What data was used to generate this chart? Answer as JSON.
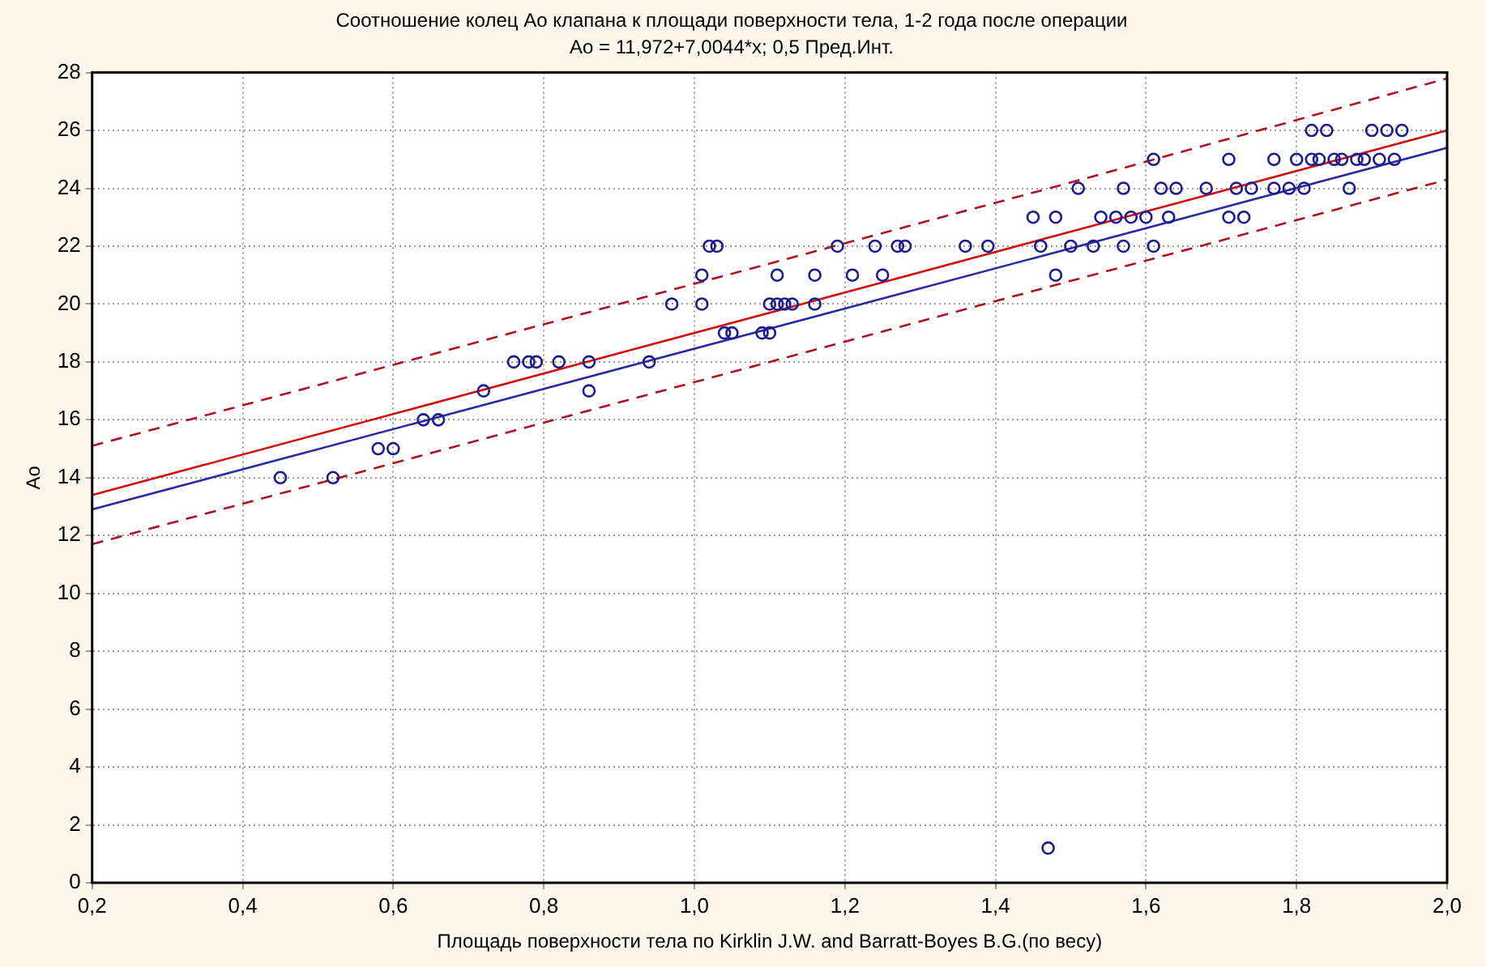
{
  "chart_data": {
    "type": "scatter",
    "title": "Соотношение колец Ао клапана к площади поверхности тела, 1-2 года после операции",
    "subtitle": "Ao = 11,972+7,0044*x; 0,5 Пред.Инт.",
    "xlabel": "Площадь поверхности тела по Kirklin J.W. and Barratt-Boyes B.G.(по весу)",
    "ylabel": "Ao",
    "xlim": [
      0.2,
      2.0
    ],
    "xticks": [
      {
        "value": 0.2,
        "label": "0,2"
      },
      {
        "value": 0.4,
        "label": "0,4"
      },
      {
        "value": 0.6,
        "label": "0,6"
      },
      {
        "value": 0.8,
        "label": "0,8"
      },
      {
        "value": 1.0,
        "label": "1,0"
      },
      {
        "value": 1.2,
        "label": "1,2"
      },
      {
        "value": 1.4,
        "label": "1,4"
      },
      {
        "value": 1.6,
        "label": "1,6"
      },
      {
        "value": 1.8,
        "label": "1,8"
      },
      {
        "value": 2.0,
        "label": "2,0"
      }
    ],
    "ylim": [
      0,
      28
    ],
    "yticks": [
      0,
      2,
      4,
      6,
      8,
      10,
      12,
      14,
      16,
      18,
      20,
      22,
      24,
      26,
      28
    ],
    "grid": true,
    "legend": false,
    "series": [
      {
        "marker": "circle",
        "color": "#1c1c8c",
        "x": [
          0.45,
          0.52,
          0.58,
          0.6,
          0.64,
          0.66,
          0.72,
          0.76,
          0.78,
          0.79,
          0.82,
          0.86,
          0.86,
          0.94,
          0.97,
          1.01,
          1.01,
          1.02,
          1.03,
          1.04,
          1.05,
          1.09,
          1.1,
          1.1,
          1.11,
          1.11,
          1.12,
          1.13,
          1.16,
          1.16,
          1.19,
          1.21,
          1.24,
          1.25,
          1.27,
          1.28,
          1.36,
          1.39,
          1.45,
          1.46,
          1.48,
          1.48,
          1.47,
          1.5,
          1.51,
          1.53,
          1.54,
          1.56,
          1.57,
          1.57,
          1.58,
          1.6,
          1.61,
          1.61,
          1.62,
          1.63,
          1.64,
          1.68,
          1.71,
          1.71,
          1.73,
          1.72,
          1.74,
          1.77,
          1.77,
          1.79,
          1.8,
          1.81,
          1.82,
          1.82,
          1.83,
          1.84,
          1.85,
          1.86,
          1.87,
          1.88,
          1.89,
          1.9,
          1.91,
          1.92,
          1.93,
          1.94
        ],
        "values": [
          14,
          14,
          15,
          15,
          16,
          16,
          17,
          18,
          18,
          18,
          18,
          18,
          17,
          18,
          20,
          20,
          21,
          22,
          22,
          19,
          19,
          19,
          19,
          20,
          20,
          21,
          20,
          20,
          20,
          21,
          22,
          21,
          22,
          21,
          22,
          22,
          22,
          22,
          23,
          22,
          23,
          21,
          1.2,
          22,
          24,
          22,
          23,
          23,
          22,
          24,
          23,
          23,
          25,
          22,
          24,
          23,
          24,
          24,
          25,
          23,
          23,
          24,
          24,
          24,
          25,
          24,
          25,
          24,
          25,
          26,
          25,
          26,
          25,
          25,
          24,
          25,
          25,
          26,
          25,
          26,
          25,
          26
        ]
      },
      {
        "type": "line",
        "marker": "none",
        "line_style": "solid",
        "color": "#d01010",
        "x": [
          0.2,
          2.0
        ],
        "values": [
          13.4,
          26.0
        ]
      },
      {
        "type": "line",
        "marker": "none",
        "line_style": "solid",
        "color": "#2a2aa0",
        "x": [
          0.2,
          2.0
        ],
        "values": [
          12.9,
          25.4
        ]
      },
      {
        "type": "line",
        "marker": "none",
        "line_style": "dashed",
        "color": "#b01020",
        "x": [
          0.2,
          0.6,
          1.1,
          1.5,
          2.0
        ],
        "values": [
          15.1,
          17.9,
          21.4,
          24.2,
          27.8
        ]
      },
      {
        "type": "line",
        "marker": "none",
        "line_style": "dashed",
        "color": "#b01020",
        "x": [
          0.2,
          0.6,
          1.1,
          1.5,
          2.0
        ],
        "values": [
          11.7,
          14.5,
          18.0,
          20.8,
          24.3
        ]
      }
    ]
  }
}
